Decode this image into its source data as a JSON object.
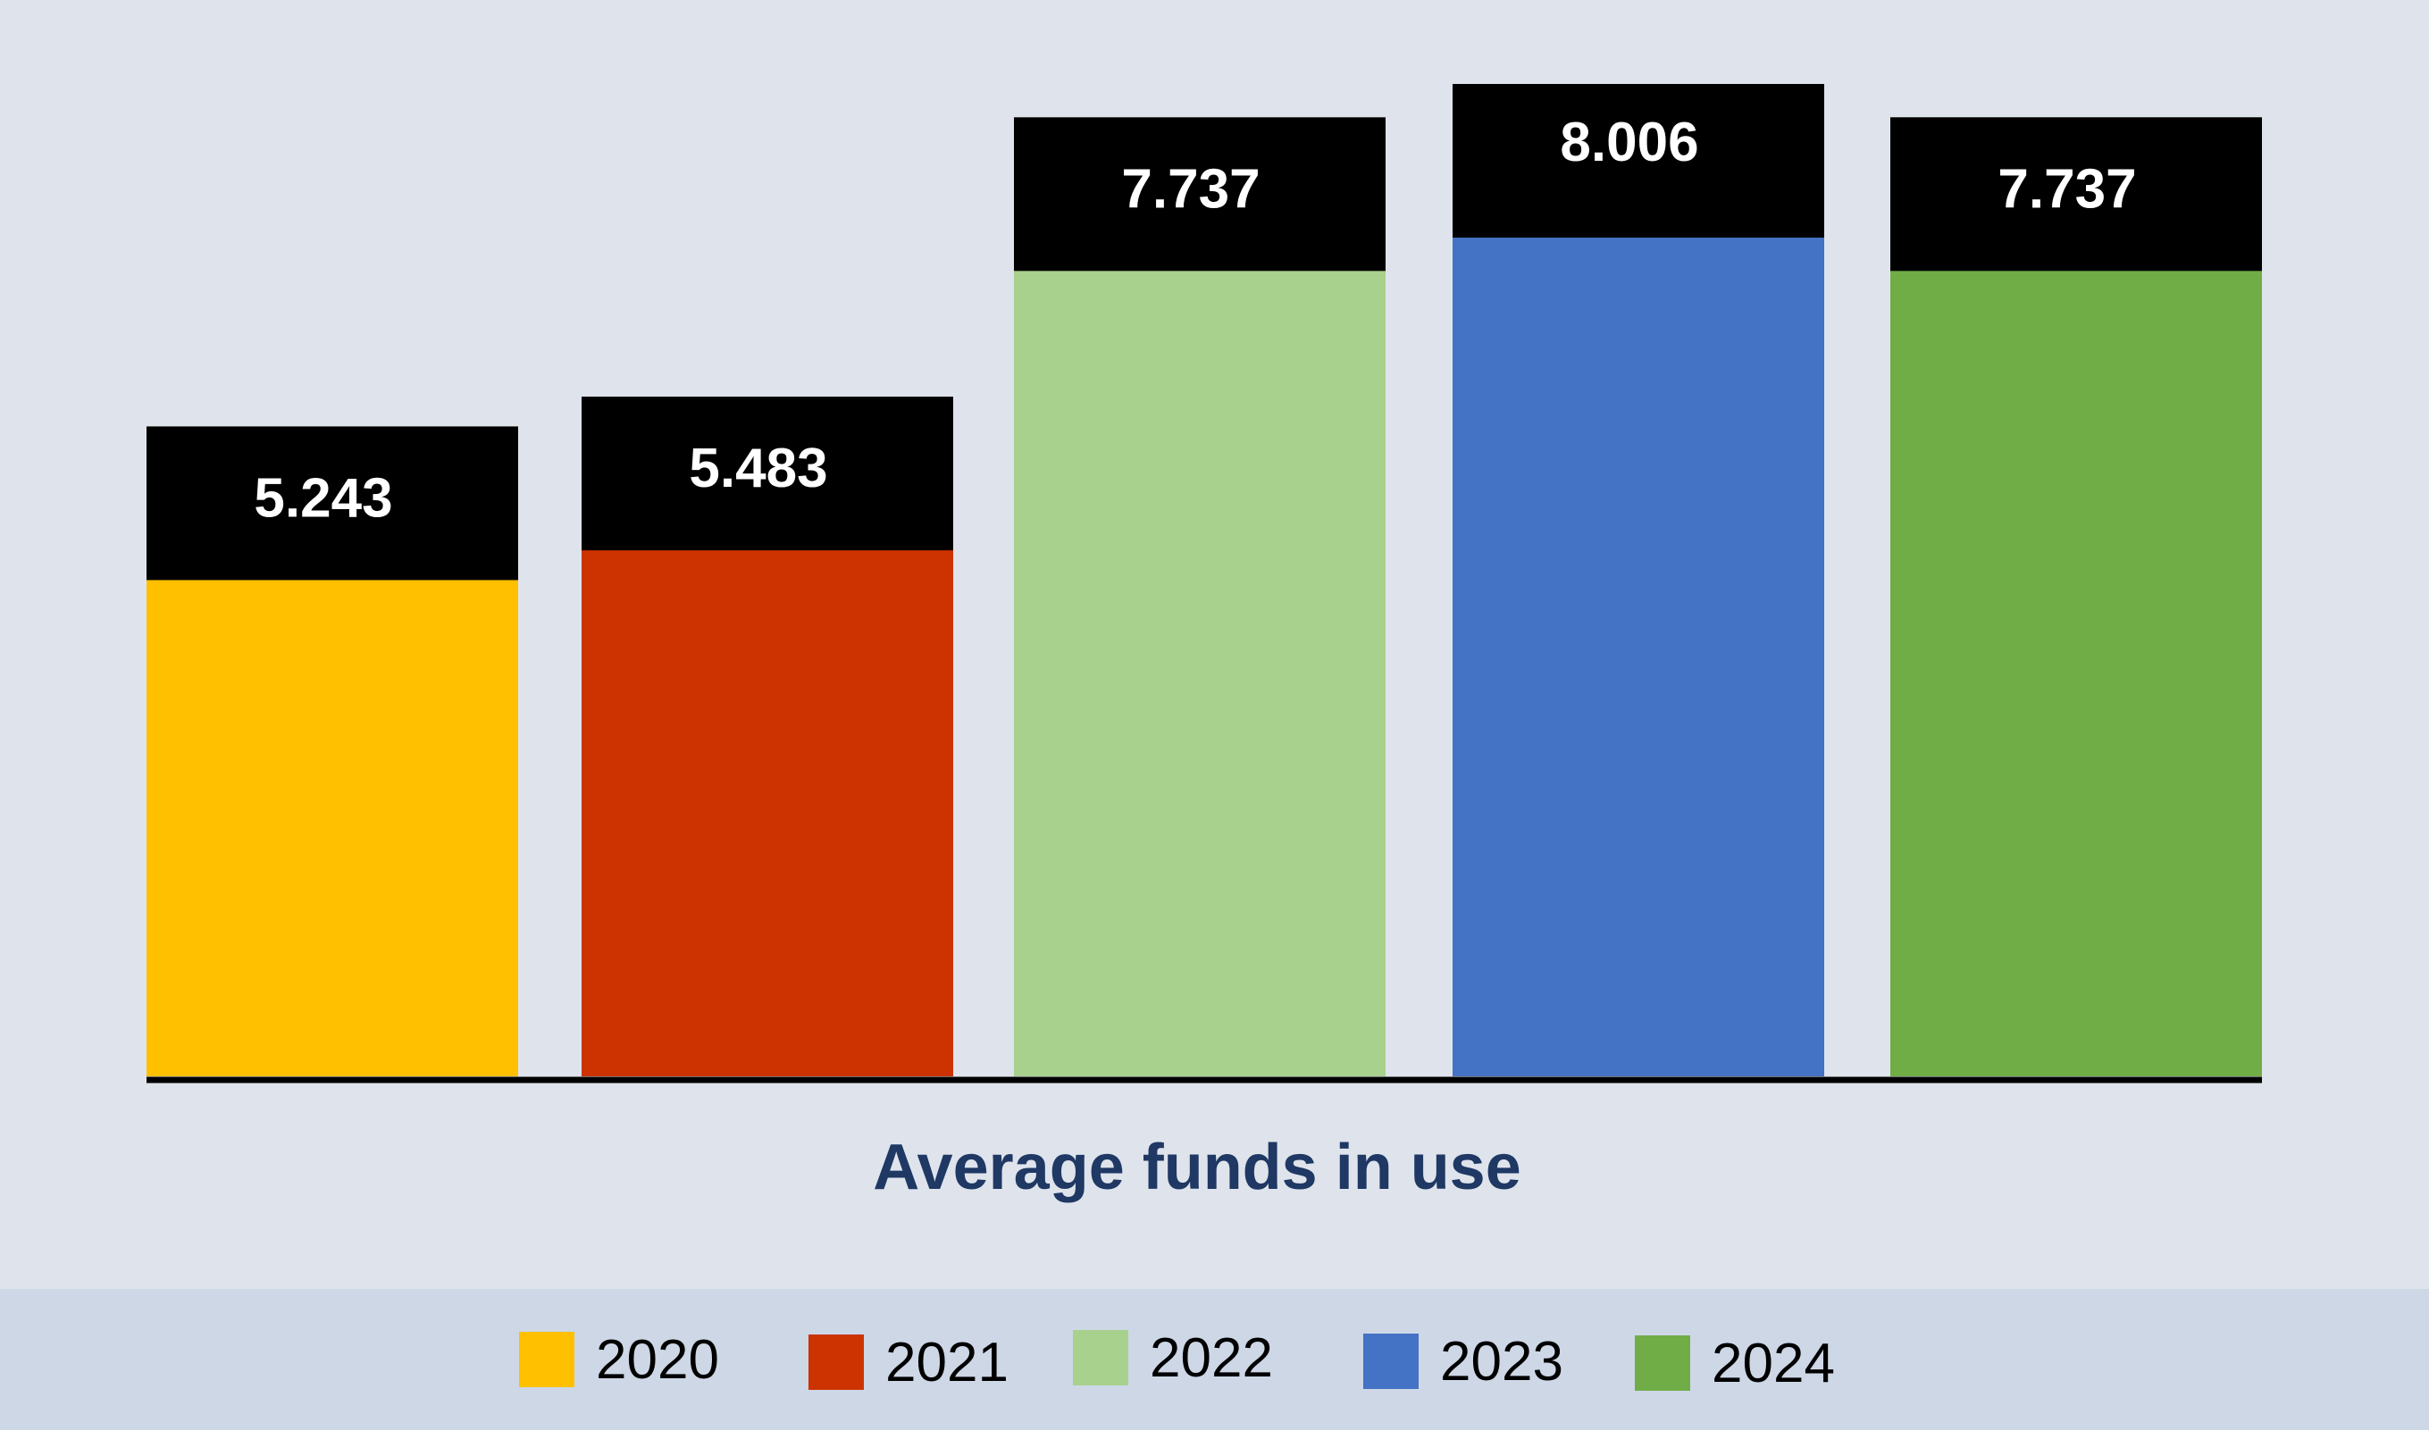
{
  "chart_data": {
    "type": "bar",
    "xlabel": "Average funds in use",
    "categories": [
      "2020",
      "2021",
      "2022",
      "2023",
      "2024"
    ],
    "values": [
      5.243,
      5.483,
      7.737,
      8.006,
      7.737
    ],
    "value_labels": [
      "5.243",
      "5.483",
      "7.737",
      "8.006",
      "7.737"
    ],
    "colors": [
      "#ffc000",
      "#cc3300",
      "#a9d18e",
      "#4472c4",
      "#70ad47"
    ],
    "label_box_color": "#000000",
    "label_text_color": "#ffffff",
    "xlabel_color": "#1f3864",
    "legend": {
      "placement": "bottom",
      "entries": [
        {
          "label": "2020",
          "color": "#ffc000"
        },
        {
          "label": "2021",
          "color": "#cc3300"
        },
        {
          "label": "2022",
          "color": "#a9d18e"
        },
        {
          "label": "2023",
          "color": "#4472c4"
        },
        {
          "label": "2024",
          "color": "#70ad47"
        }
      ]
    },
    "grid": false,
    "y_axis_visible": false
  }
}
